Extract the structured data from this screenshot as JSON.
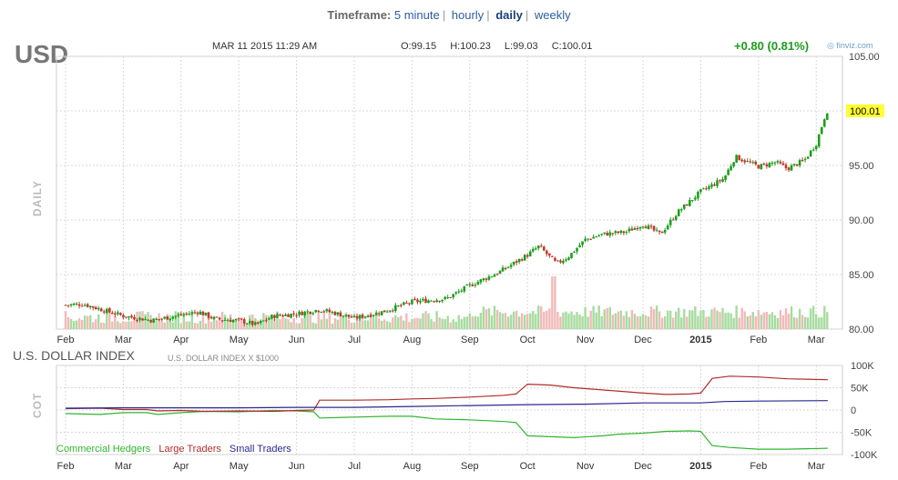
{
  "timeframe": {
    "label": "Timeframe:",
    "options": [
      "5 minute",
      "hourly",
      "daily",
      "weekly"
    ],
    "active": "daily"
  },
  "header": {
    "ticker": "USD",
    "timestamp": "MAR 11 2015 11:29 AM",
    "open": "O:99.15",
    "high": "H:100.23",
    "low": "L:99.03",
    "close": "C:100.01",
    "change": "+0.80 (0.81%)",
    "brand": "finviz.com"
  },
  "colors": {
    "up": "#1a9e1a",
    "down": "#c0392b",
    "vol_up": "#a8dba0",
    "vol_down": "#f2b9b9",
    "grid": "#d8d8d8",
    "commercial": "#2fb52f",
    "large": "#b22b2b",
    "small": "#28288f",
    "last_price_bg": "#ffff33"
  },
  "chart_data": [
    {
      "type": "candlestick",
      "title": "USD",
      "ylabel": "DAILY",
      "ylim": [
        80,
        105
      ],
      "yticks": [
        80.0,
        85.0,
        90.0,
        95.0,
        100.0,
        105.0
      ],
      "xticks": [
        "Feb",
        "Mar",
        "Apr",
        "May",
        "Jun",
        "Jul",
        "Aug",
        "Sep",
        "Oct",
        "Nov",
        "Dec",
        "2015",
        "Feb",
        "Mar"
      ],
      "last_price": "100.01",
      "close_anchors": [
        {
          "month_index": 0,
          "value": 82.2
        },
        {
          "month_index": 0.3,
          "value": 82.3
        },
        {
          "month_index": 1,
          "value": 81.2
        },
        {
          "month_index": 1.5,
          "value": 80.8
        },
        {
          "month_index": 2,
          "value": 81.3
        },
        {
          "month_index": 2.3,
          "value": 81.6
        },
        {
          "month_index": 2.6,
          "value": 80.9
        },
        {
          "month_index": 3,
          "value": 80.8
        },
        {
          "month_index": 3.3,
          "value": 80.4
        },
        {
          "month_index": 3.6,
          "value": 81.2
        },
        {
          "month_index": 4,
          "value": 81.4
        },
        {
          "month_index": 4.4,
          "value": 81.8
        },
        {
          "month_index": 4.8,
          "value": 81.3
        },
        {
          "month_index": 5,
          "value": 81.0
        },
        {
          "month_index": 5.5,
          "value": 81.6
        },
        {
          "month_index": 6,
          "value": 82.5
        },
        {
          "month_index": 6.6,
          "value": 82.8
        },
        {
          "month_index": 7,
          "value": 84.0
        },
        {
          "month_index": 7.5,
          "value": 85.2
        },
        {
          "month_index": 8,
          "value": 86.8
        },
        {
          "month_index": 8.2,
          "value": 87.6
        },
        {
          "month_index": 8.5,
          "value": 86.0
        },
        {
          "month_index": 8.7,
          "value": 86.6
        },
        {
          "month_index": 9,
          "value": 88.2
        },
        {
          "month_index": 9.3,
          "value": 88.7
        },
        {
          "month_index": 9.7,
          "value": 88.9
        },
        {
          "month_index": 10,
          "value": 89.6
        },
        {
          "month_index": 10.3,
          "value": 88.7
        },
        {
          "month_index": 10.6,
          "value": 90.7
        },
        {
          "month_index": 11,
          "value": 92.6
        },
        {
          "month_index": 11.4,
          "value": 93.8
        },
        {
          "month_index": 11.6,
          "value": 95.8
        },
        {
          "month_index": 12,
          "value": 94.9
        },
        {
          "month_index": 12.3,
          "value": 95.3
        },
        {
          "month_index": 12.5,
          "value": 94.7
        },
        {
          "month_index": 12.8,
          "value": 95.5
        },
        {
          "month_index": 13,
          "value": 97.0
        },
        {
          "month_index": 13.18,
          "value": 100.0
        }
      ]
    },
    {
      "type": "line",
      "title": "U.S. DOLLAR INDEX",
      "subtitle": "U.S. DOLLAR INDEX X $1000",
      "ylabel": "COT",
      "ylim": [
        -100,
        100
      ],
      "yticks": [
        "100K",
        "50K",
        "0",
        "-50K",
        "-100K"
      ],
      "ytick_values": [
        100,
        50,
        0,
        -50,
        -100
      ],
      "xticks": [
        "Feb",
        "Mar",
        "Apr",
        "May",
        "Jun",
        "Jul",
        "Aug",
        "Sep",
        "Oct",
        "Nov",
        "Dec",
        "2015",
        "Feb",
        "Mar"
      ],
      "series": [
        {
          "name": "Commercial Hedgers",
          "points": [
            [
              0,
              -8
            ],
            [
              0.6,
              -10
            ],
            [
              1,
              -6
            ],
            [
              1.4,
              -6
            ],
            [
              1.6,
              -10
            ],
            [
              2,
              -6
            ],
            [
              2.4,
              -3
            ],
            [
              3,
              -4
            ],
            [
              3.6,
              -1
            ],
            [
              4,
              -2
            ],
            [
              4.3,
              -4
            ],
            [
              4.4,
              -18
            ],
            [
              5,
              -16
            ],
            [
              5.6,
              -14
            ],
            [
              6,
              -14
            ],
            [
              6.4,
              -20
            ],
            [
              7,
              -22
            ],
            [
              7.6,
              -26
            ],
            [
              7.8,
              -28
            ],
            [
              8,
              -58
            ],
            [
              8.4,
              -60
            ],
            [
              8.8,
              -62
            ],
            [
              9.3,
              -58
            ],
            [
              9.6,
              -54
            ],
            [
              10,
              -52
            ],
            [
              10.4,
              -48
            ],
            [
              10.8,
              -47
            ],
            [
              11,
              -48
            ],
            [
              11.2,
              -80
            ],
            [
              11.5,
              -84
            ],
            [
              12,
              -88
            ],
            [
              12.5,
              -88
            ],
            [
              13.2,
              -86
            ]
          ]
        },
        {
          "name": "Large Traders",
          "points": [
            [
              0,
              3
            ],
            [
              0.6,
              4
            ],
            [
              1,
              1
            ],
            [
              1.4,
              1
            ],
            [
              1.6,
              -2
            ],
            [
              2,
              -1
            ],
            [
              2.4,
              -3
            ],
            [
              3,
              -2
            ],
            [
              3.6,
              -3
            ],
            [
              4,
              -1
            ],
            [
              4.3,
              0
            ],
            [
              4.4,
              22
            ],
            [
              5,
              22
            ],
            [
              5.6,
              23
            ],
            [
              6,
              25
            ],
            [
              6.4,
              26
            ],
            [
              7,
              29
            ],
            [
              7.6,
              33
            ],
            [
              7.8,
              36
            ],
            [
              8,
              58
            ],
            [
              8.4,
              56
            ],
            [
              8.8,
              50
            ],
            [
              9.3,
              45
            ],
            [
              9.6,
              42
            ],
            [
              10,
              38
            ],
            [
              10.4,
              35
            ],
            [
              10.8,
              36
            ],
            [
              11,
              38
            ],
            [
              11.2,
              71
            ],
            [
              11.5,
              76
            ],
            [
              12,
              74
            ],
            [
              12.5,
              70
            ],
            [
              13.2,
              68
            ]
          ]
        },
        {
          "name": "Small Traders",
          "points": [
            [
              0,
              4
            ],
            [
              1,
              5
            ],
            [
              2,
              5
            ],
            [
              3,
              5
            ],
            [
              4,
              6
            ],
            [
              5,
              6
            ],
            [
              6,
              8
            ],
            [
              7,
              10
            ],
            [
              8,
              12
            ],
            [
              9,
              13
            ],
            [
              10,
              16
            ],
            [
              11,
              16
            ],
            [
              11.4,
              19
            ],
            [
              12,
              20
            ],
            [
              13.2,
              21
            ]
          ]
        }
      ]
    }
  ],
  "labels": {
    "panel1_side": "DAILY",
    "panel2_side": "COT"
  }
}
